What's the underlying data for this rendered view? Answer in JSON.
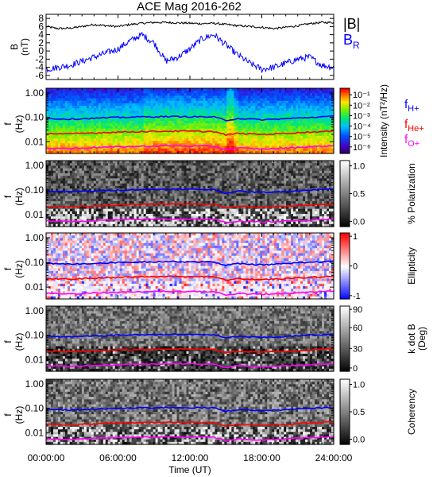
{
  "title": "ACE Mag 2016-262",
  "time_axis": {
    "label": "Time (UT)",
    "ticks": [
      "00:00:00",
      "06:00:00",
      "12:00:00",
      "18:00:00",
      "24:00:00"
    ]
  },
  "freq_ticks": [
    "1.00",
    "0.10",
    "0.01"
  ],
  "freq_axis_label": {
    "top": "f",
    "bottom": "(Hz)"
  },
  "line_colors": {
    "H": "#0000ff",
    "He": "#ff0000",
    "O": "#ff00ff"
  },
  "chart_data": [
    {
      "type": "line",
      "panel": "B",
      "ylabel": {
        "top": "B",
        "bottom": "(nT)"
      },
      "ylim": [
        -7,
        9
      ],
      "y_ticks": [
        "8",
        "6",
        "4",
        "2",
        "0",
        "-2",
        "-4",
        "-6"
      ],
      "legend": [
        "|B|",
        "B_R"
      ],
      "x_hours": [
        0,
        1,
        2,
        3,
        4,
        5,
        6,
        7,
        8,
        9,
        10,
        11,
        12,
        13,
        14,
        15,
        16,
        17,
        18,
        19,
        20,
        21,
        22,
        23,
        24
      ],
      "series": [
        {
          "name": "|B|",
          "color": "#000000",
          "values": [
            6,
            5.5,
            5.6,
            6.0,
            6.5,
            6.2,
            6.0,
            6.5,
            6.8,
            7.0,
            7.0,
            6.9,
            6.8,
            6.7,
            6.8,
            6.5,
            6.2,
            6.0,
            5.8,
            5.5,
            5.8,
            6.2,
            6.7,
            7.0,
            7.0
          ]
        },
        {
          "name": "B_R",
          "color": "#0000ff",
          "values": [
            -4.5,
            -4.0,
            -3.5,
            -2.5,
            -1.5,
            -0.5,
            0.5,
            2.5,
            4.0,
            2.0,
            -2.5,
            -1.5,
            0.5,
            3.0,
            4.0,
            1.5,
            -1.0,
            -3.0,
            -4.5,
            -4.0,
            -3.0,
            -2.0,
            -1.5,
            -3.5,
            -4.0
          ]
        }
      ]
    },
    {
      "type": "heatmap",
      "panel": "intensity",
      "colorbar": {
        "label": "Intensity (nT²/Hz)",
        "ticks": [
          "10⁻¹",
          "10⁻²",
          "10⁻³",
          "10⁻⁴",
          "10⁻⁵",
          "10⁻⁶"
        ]
      },
      "legend": [
        "f_H+",
        "f_He+",
        "f_O+"
      ]
    },
    {
      "type": "heatmap",
      "panel": "polarization",
      "colorbar": {
        "label": "% Polarization",
        "ticks": [
          "1.0",
          "0.5",
          "0.0"
        ]
      }
    },
    {
      "type": "heatmap",
      "panel": "ellipticity",
      "colorbar": {
        "label": "Ellipticity",
        "ticks": [
          "1",
          "0",
          "-1"
        ]
      }
    },
    {
      "type": "heatmap",
      "panel": "kdotb",
      "colorbar": {
        "label": "k dot B",
        "unit": "(Deg)",
        "ticks": [
          "90",
          "60",
          "30",
          "0"
        ]
      }
    },
    {
      "type": "heatmap",
      "panel": "coherency",
      "colorbar": {
        "label": "Coherency",
        "ticks": [
          "1.0",
          "0.5",
          "0.0"
        ]
      }
    },
    {
      "type": "line",
      "panel": "gyrofrequencies",
      "x_hours": [
        0,
        2,
        4,
        6,
        8,
        10,
        12,
        14,
        15,
        16,
        18,
        20,
        22,
        24
      ],
      "series": [
        {
          "name": "f_H+",
          "color": "#0000ff",
          "values": [
            0.09,
            0.085,
            0.092,
            0.1,
            0.105,
            0.108,
            0.107,
            0.104,
            0.075,
            0.09,
            0.08,
            0.088,
            0.1,
            0.11
          ]
        },
        {
          "name": "f_He+",
          "color": "#ff0000",
          "values": [
            0.022,
            0.021,
            0.023,
            0.025,
            0.026,
            0.027,
            0.027,
            0.026,
            0.019,
            0.022,
            0.02,
            0.022,
            0.025,
            0.027
          ]
        },
        {
          "name": "f_O+",
          "color": "#ff00ff",
          "values": [
            0.0056,
            0.0053,
            0.0058,
            0.0062,
            0.0065,
            0.0068,
            0.0067,
            0.0065,
            0.0047,
            0.0056,
            0.005,
            0.0055,
            0.0062,
            0.0069
          ]
        }
      ]
    }
  ]
}
